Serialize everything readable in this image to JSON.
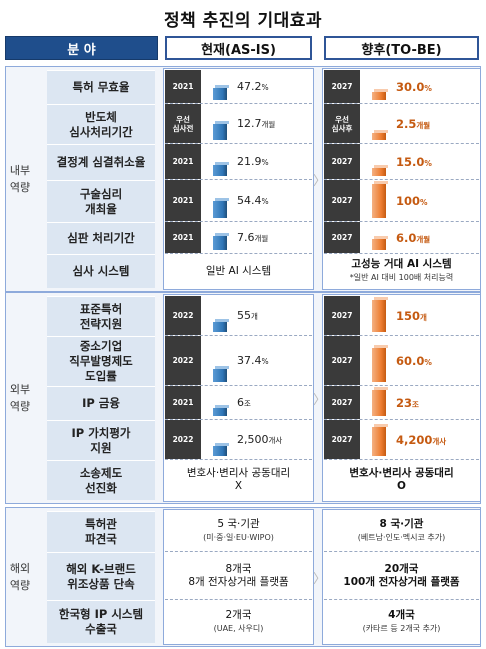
{
  "title": "정책 추진의 기대효과",
  "header": {
    "field": "분 야",
    "now": "현재(AS-IS)",
    "future": "향후(TO-BE)"
  },
  "groups": [
    {
      "label": "내부\n역량"
    },
    {
      "label": "외부\n역량"
    },
    {
      "label": "해외\n역량"
    }
  ],
  "rows": [
    {
      "label": "특허 무효율",
      "now": {
        "year": "2021",
        "value": "47.2",
        "unit": "%",
        "level": 0.47
      },
      "future": {
        "year": "2027",
        "value": "30.0",
        "unit": "%",
        "level": 0.3
      }
    },
    {
      "label": "반도체\n심사처리기간",
      "now": {
        "year": "우선\n심사전",
        "value": "12.7",
        "unit": "개월",
        "level": 0.5
      },
      "future": {
        "year": "우선\n심사후",
        "value": "2.5",
        "unit": "개월",
        "level": 0.22
      }
    },
    {
      "label": "결정계 심결취소율",
      "now": {
        "year": "2021",
        "value": "21.9",
        "unit": "%",
        "level": 0.4
      },
      "future": {
        "year": "2027",
        "value": "15.0",
        "unit": "%",
        "level": 0.3
      }
    },
    {
      "label": "구술심리\n개최율",
      "now": {
        "year": "2021",
        "value": "54.4",
        "unit": "%",
        "level": 0.5
      },
      "future": {
        "year": "2027",
        "value": "100",
        "unit": "%",
        "level": 1.0
      }
    },
    {
      "label": "심판 처리기간",
      "now": {
        "year": "2021",
        "value": "7.6",
        "unit": "개월",
        "level": 0.6
      },
      "future": {
        "year": "2027",
        "value": "6.0",
        "unit": "개월",
        "level": 0.45
      }
    },
    {
      "label": "심사 시스템",
      "now_text": "일반 AI 시스템",
      "future_text": "고성능 거대 AI 시스템",
      "future_sub": "*일반 AI 대비 100배 처리능력"
    },
    {
      "label": "표준특허\n전략지원",
      "now": {
        "year": "2022",
        "value": "55",
        "unit": "개",
        "level": 0.3
      },
      "future": {
        "year": "2027",
        "value": "150",
        "unit": "개",
        "level": 1.0
      }
    },
    {
      "label": "중소기업\n직무발명제도\n도입률",
      "now": {
        "year": "2022",
        "value": "37.4",
        "unit": "%",
        "level": 0.3
      },
      "future": {
        "year": "2027",
        "value": "60.0",
        "unit": "%",
        "level": 0.8
      }
    },
    {
      "label": "IP 금융",
      "now": {
        "year": "2021",
        "value": "6",
        "unit": "조",
        "level": 0.3
      },
      "future": {
        "year": "2027",
        "value": "23",
        "unit": "조",
        "level": 1.0
      }
    },
    {
      "label": "IP 가치평가\n지원",
      "now": {
        "year": "2022",
        "value": "2,500",
        "unit": "개사",
        "level": 0.3
      },
      "future": {
        "year": "2027",
        "value": "4,200",
        "unit": "개사",
        "level": 0.9
      }
    },
    {
      "label": "소송제도\n선진화",
      "now_text": "변호사·변리사 공동대리\nX",
      "future_text": "변호사·변리사 공동대리\nO"
    },
    {
      "label": "특허관\n파견국",
      "now_text": "5 국·기관",
      "now_sub": "(미·중·일·EU·WIPO)",
      "future_text": "8 국·기관",
      "future_sub": "(베트남·인도·멕시코 추가)"
    },
    {
      "label": "해외 K-브랜드\n위조상품 단속",
      "now_text": "8개국\n8개 전자상거래 플랫폼",
      "future_text": "20개국\n100개 전자상거래 플랫폼"
    },
    {
      "label": "한국형 IP 시스템\n수출국",
      "now_text": "2개국",
      "now_sub": "(UAE, 사우디)",
      "future_text": "4개국",
      "future_sub": "(카타르 등 2개국 추가)"
    }
  ],
  "colors": {
    "header_blue": "#1f4e8c",
    "bar_blue": "#2e75b6",
    "bar_orange": "#ed7d31",
    "year_box": "#3a3a3a"
  }
}
